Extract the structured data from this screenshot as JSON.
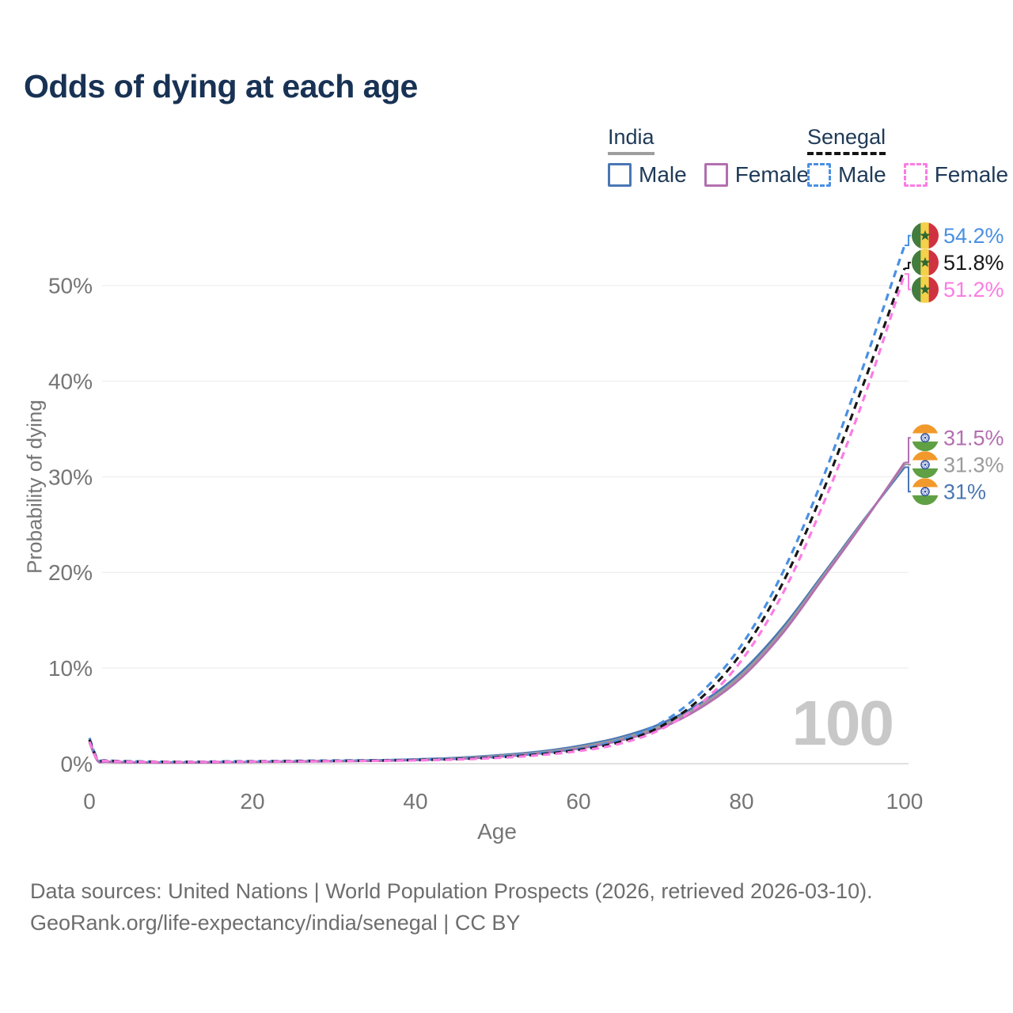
{
  "page": {
    "title": "Odds of dying at each age",
    "footer_line1": "Data sources: United Nations | World Population Prospects (2026, retrieved 2026-03-10).",
    "footer_line2": "GeoRank.org/life-expectancy/india/senegal | CC BY"
  },
  "legend": {
    "groups": [
      {
        "label": "India",
        "line_style": "solid",
        "underline_color": "#9e9e9e",
        "items": [
          {
            "label": "Male",
            "color": "#4a77b4",
            "dashed": false
          },
          {
            "label": "Female",
            "color": "#b36fb0",
            "dashed": false
          }
        ]
      },
      {
        "label": "Senegal",
        "line_style": "dashed",
        "underline_color": "#141414",
        "items": [
          {
            "label": "Male",
            "color": "#4a90e2",
            "dashed": true
          },
          {
            "label": "Female",
            "color": "#fb7ce3",
            "dashed": true
          }
        ]
      }
    ]
  },
  "chart_data": {
    "type": "line",
    "title": "Odds of dying at each age",
    "xlabel": "Age",
    "ylabel": "Probability of dying",
    "xlim": [
      0,
      100
    ],
    "ylim": [
      0,
      56
    ],
    "grid": "horizontal-only",
    "legend_position": "top-right",
    "annotation": "100",
    "x_ticks": [
      0,
      20,
      40,
      60,
      80,
      100
    ],
    "y_ticks": [
      {
        "value": 0,
        "label": "0%"
      },
      {
        "value": 10,
        "label": "10%"
      },
      {
        "value": 20,
        "label": "20%"
      },
      {
        "value": 30,
        "label": "30%"
      },
      {
        "value": 40,
        "label": "40%"
      },
      {
        "value": 50,
        "label": "50%"
      }
    ],
    "ages": [
      0,
      1,
      2,
      5,
      10,
      15,
      20,
      25,
      30,
      35,
      40,
      45,
      50,
      55,
      60,
      65,
      70,
      75,
      80,
      85,
      90,
      95,
      100
    ],
    "series": [
      {
        "name": "India Male",
        "country": "india",
        "sex": "Male",
        "color": "#4a77b4",
        "dashed": false,
        "end_label": "31%",
        "values": [
          2.5,
          0.35,
          0.22,
          0.15,
          0.12,
          0.15,
          0.2,
          0.25,
          0.3,
          0.36,
          0.46,
          0.62,
          0.88,
          1.25,
          1.85,
          2.75,
          4.15,
          6.35,
          9.6,
          14.2,
          19.8,
          25.5,
          31.0
        ]
      },
      {
        "name": "India Both sexes",
        "country": "india",
        "sex": "Both",
        "color": "#9b9b9b",
        "dashed": false,
        "end_label": "31.3%",
        "values": [
          2.35,
          0.33,
          0.21,
          0.14,
          0.115,
          0.14,
          0.18,
          0.22,
          0.27,
          0.32,
          0.41,
          0.56,
          0.8,
          1.15,
          1.72,
          2.58,
          3.92,
          6.1,
          9.3,
          13.9,
          19.6,
          25.4,
          31.3
        ]
      },
      {
        "name": "India Female",
        "country": "india",
        "sex": "Female",
        "color": "#b36fb0",
        "dashed": false,
        "end_label": "31.5%",
        "values": [
          2.2,
          0.3,
          0.19,
          0.13,
          0.11,
          0.13,
          0.17,
          0.2,
          0.24,
          0.29,
          0.37,
          0.5,
          0.72,
          1.05,
          1.58,
          2.4,
          3.68,
          5.85,
          9.0,
          13.6,
          19.4,
          25.3,
          31.5
        ]
      },
      {
        "name": "Senegal Male",
        "country": "senegal",
        "sex": "Male",
        "color": "#4a90e2",
        "dashed": true,
        "end_label": "54.2%",
        "values": [
          2.7,
          0.5,
          0.35,
          0.25,
          0.2,
          0.22,
          0.26,
          0.3,
          0.33,
          0.36,
          0.42,
          0.52,
          0.72,
          1.05,
          1.55,
          2.45,
          4.2,
          7.4,
          12.4,
          19.9,
          29.9,
          41.7,
          54.2
        ]
      },
      {
        "name": "Senegal Both sexes",
        "country": "senegal",
        "sex": "Both",
        "color": "#181818",
        "dashed": true,
        "end_label": "51.8%",
        "values": [
          2.5,
          0.46,
          0.32,
          0.23,
          0.19,
          0.2,
          0.24,
          0.27,
          0.3,
          0.33,
          0.38,
          0.48,
          0.66,
          0.96,
          1.44,
          2.25,
          3.85,
          6.85,
          11.6,
          18.8,
          28.5,
          39.8,
          51.8
        ]
      },
      {
        "name": "Senegal Female",
        "country": "senegal",
        "sex": "Female",
        "color": "#fb7ce3",
        "dashed": true,
        "end_label": "51.2%",
        "values": [
          2.3,
          0.42,
          0.3,
          0.21,
          0.18,
          0.19,
          0.22,
          0.25,
          0.27,
          0.3,
          0.35,
          0.44,
          0.6,
          0.88,
          1.32,
          2.08,
          3.55,
          6.3,
          10.8,
          17.7,
          27.1,
          38.2,
          51.2
        ]
      }
    ]
  }
}
